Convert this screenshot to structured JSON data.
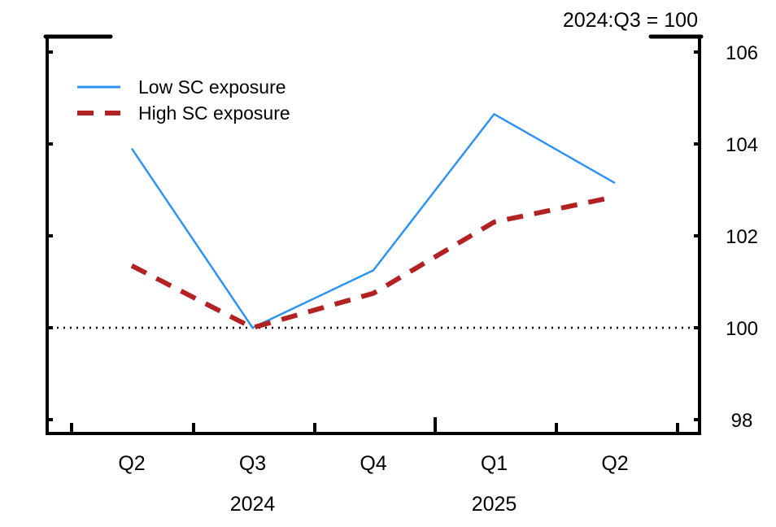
{
  "chart_data": {
    "type": "line",
    "title": "",
    "note": "2024:Q3 = 100",
    "xlabel": "",
    "ylabel": "",
    "categories": [
      "Q2",
      "Q3",
      "Q4",
      "Q1",
      "Q2"
    ],
    "year_labels": [
      {
        "label": "2024",
        "index": 1
      },
      {
        "label": "2025",
        "index": 3
      }
    ],
    "ylim": [
      98,
      106
    ],
    "yticks": [
      98,
      100,
      102,
      104,
      106
    ],
    "y_axis_side": "right",
    "reference_line": 100,
    "legend_position": "top-left",
    "series": [
      {
        "name": "Low SC exposure",
        "color": "#2f93f0",
        "style": "solid",
        "values": [
          103.9,
          100.0,
          101.25,
          104.65,
          103.15
        ]
      },
      {
        "name": "High SC exposure",
        "color": "#b22222",
        "style": "dashed",
        "values": [
          101.35,
          100.0,
          100.75,
          102.3,
          102.85
        ]
      }
    ]
  }
}
